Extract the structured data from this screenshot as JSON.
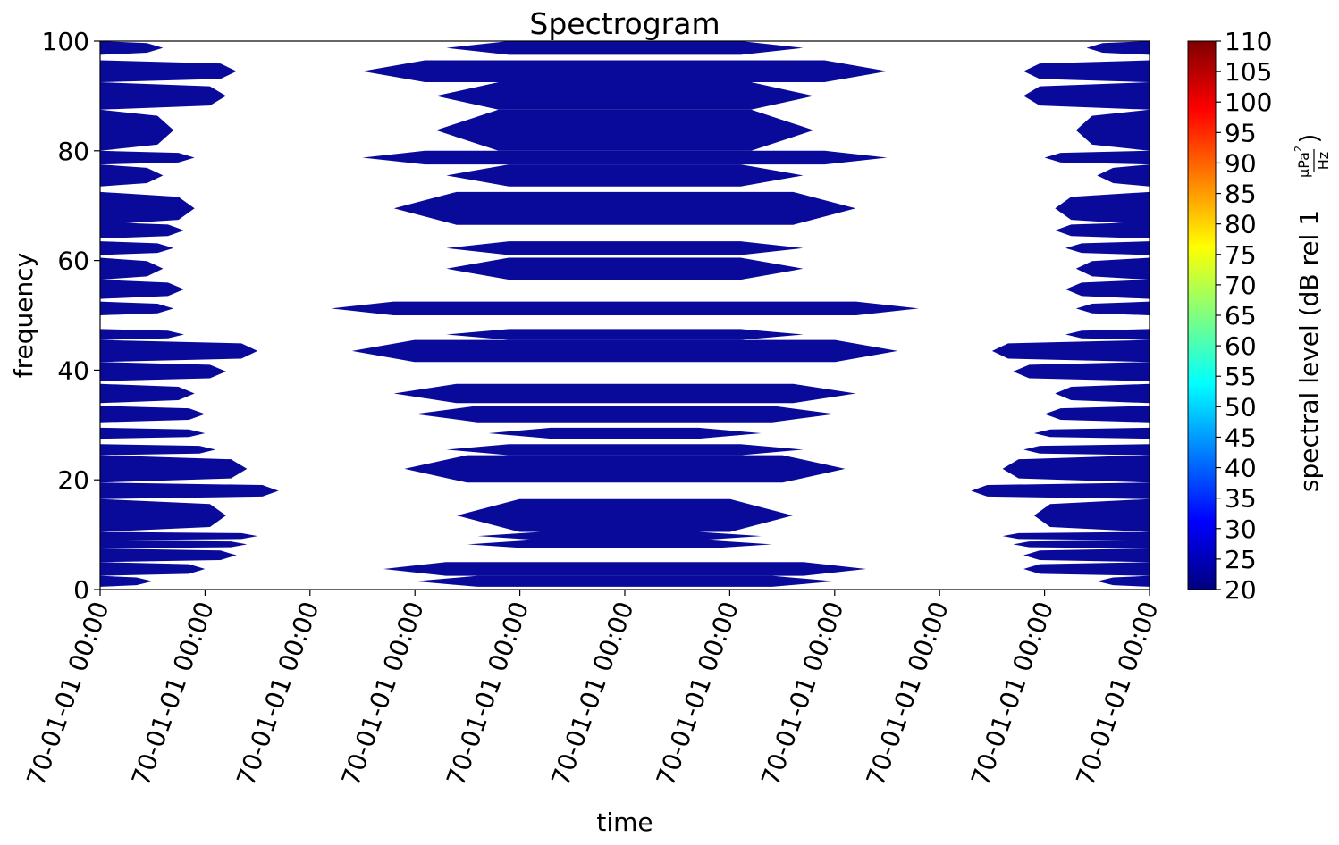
{
  "chart_data": {
    "type": "heatmap",
    "title": "Spectrogram",
    "xlabel": "time",
    "ylabel": "frequency",
    "ylim": [
      0,
      100
    ],
    "y_ticks": [
      0,
      20,
      40,
      60,
      80,
      100
    ],
    "x_tick_labels": [
      "70-01-01 00:00",
      "70-01-01 00:00",
      "70-01-01 00:00",
      "70-01-01 00:00",
      "70-01-01 00:00",
      "70-01-01 00:00",
      "70-01-01 00:00",
      "70-01-01 00:00",
      "70-01-01 00:00",
      "70-01-01 00:00",
      "70-01-01 00:00"
    ],
    "colorbar": {
      "label": "spectral level (dB rel 1",
      "unit_numerator": "μPa",
      "unit_numerator_exp": "2",
      "unit_denominator": "Hz",
      "label_close": ")",
      "range": [
        20,
        110
      ],
      "ticks": [
        20,
        25,
        30,
        35,
        40,
        45,
        50,
        55,
        60,
        65,
        70,
        75,
        80,
        85,
        90,
        95,
        100,
        105,
        110
      ],
      "colormap": "jet",
      "colors": [
        "#00007f",
        "#0000ff",
        "#007fff",
        "#00ffff",
        "#7fff7f",
        "#ffff00",
        "#ff7f00",
        "#ff0000",
        "#7f0000"
      ]
    },
    "time_domain": [
      0,
      1
    ],
    "clusters": [
      {
        "name": "left",
        "anchor": "left",
        "color": "#0a0a9a"
      },
      {
        "name": "center",
        "anchor": "center",
        "color": "#0a0a9a"
      },
      {
        "name": "right",
        "anchor": "right",
        "color": "#0a0a9a"
      }
    ],
    "bands": [
      {
        "f0": 0.5,
        "f1": 2.5,
        "left": 0.05,
        "center_l": 0.3,
        "center_r": 0.7,
        "right": 0.05
      },
      {
        "f0": 2.5,
        "f1": 5.0,
        "left": 0.1,
        "center_l": 0.27,
        "center_r": 0.73,
        "right": 0.12
      },
      {
        "f0": 5.0,
        "f1": 7.5,
        "left": 0.13,
        "center_l": 0.0,
        "center_r": 0.0,
        "right": 0.12
      },
      {
        "f0": 7.5,
        "f1": 9.0,
        "left": 0.14,
        "center_l": 0.35,
        "center_r": 0.64,
        "right": 0.13
      },
      {
        "f0": 9.0,
        "f1": 10.5,
        "left": 0.15,
        "center_l": 0.36,
        "center_r": 0.63,
        "right": 0.14
      },
      {
        "f0": 10.5,
        "f1": 16.5,
        "left": 0.12,
        "center_l": 0.34,
        "center_r": 0.66,
        "right": 0.11
      },
      {
        "f0": 16.5,
        "f1": 19.5,
        "left": 0.17,
        "center_l": 0.0,
        "center_r": 0.0,
        "right": 0.17
      },
      {
        "f0": 19.5,
        "f1": 24.5,
        "left": 0.14,
        "center_l": 0.29,
        "center_r": 0.71,
        "right": 0.14
      },
      {
        "f0": 24.5,
        "f1": 26.5,
        "left": 0.11,
        "center_l": 0.33,
        "center_r": 0.67,
        "right": 0.12
      },
      {
        "f0": 27.5,
        "f1": 29.5,
        "left": 0.1,
        "center_l": 0.37,
        "center_r": 0.63,
        "right": 0.11
      },
      {
        "f0": 30.5,
        "f1": 33.5,
        "left": 0.1,
        "center_l": 0.3,
        "center_r": 0.7,
        "right": 0.1
      },
      {
        "f0": 34.0,
        "f1": 37.5,
        "left": 0.09,
        "center_l": 0.28,
        "center_r": 0.72,
        "right": 0.09
      },
      {
        "f0": 38.0,
        "f1": 41.5,
        "left": 0.12,
        "center_l": 0.0,
        "center_r": 0.0,
        "right": 0.13
      },
      {
        "f0": 41.5,
        "f1": 45.5,
        "left": 0.15,
        "center_l": 0.24,
        "center_r": 0.76,
        "right": 0.15
      },
      {
        "f0": 45.5,
        "f1": 47.5,
        "left": 0.08,
        "center_l": 0.33,
        "center_r": 0.67,
        "right": 0.08
      },
      {
        "f0": 50.0,
        "f1": 52.5,
        "left": 0.07,
        "center_l": 0.22,
        "center_r": 0.78,
        "right": 0.07
      },
      {
        "f0": 53.0,
        "f1": 56.5,
        "left": 0.08,
        "center_l": 0.0,
        "center_r": 0.0,
        "right": 0.08
      },
      {
        "f0": 56.5,
        "f1": 60.5,
        "left": 0.06,
        "center_l": 0.33,
        "center_r": 0.67,
        "right": 0.07
      },
      {
        "f0": 61.0,
        "f1": 63.5,
        "left": 0.07,
        "center_l": 0.33,
        "center_r": 0.67,
        "right": 0.08
      },
      {
        "f0": 64.0,
        "f1": 67.0,
        "left": 0.08,
        "center_l": 0.0,
        "center_r": 0.0,
        "right": 0.09
      },
      {
        "f0": 66.5,
        "f1": 72.5,
        "left": 0.09,
        "center_l": 0.28,
        "center_r": 0.72,
        "right": 0.09
      },
      {
        "f0": 73.5,
        "f1": 77.5,
        "left": 0.06,
        "center_l": 0.33,
        "center_r": 0.67,
        "right": 0.05
      },
      {
        "f0": 77.5,
        "f1": 80.0,
        "left": 0.09,
        "center_l": 0.25,
        "center_r": 0.75,
        "right": 0.1
      },
      {
        "f0": 80.0,
        "f1": 87.5,
        "left": 0.07,
        "center_l": 0.32,
        "center_r": 0.68,
        "right": 0.07
      },
      {
        "f0": 87.5,
        "f1": 92.5,
        "left": 0.12,
        "center_l": 0.32,
        "center_r": 0.68,
        "right": 0.12
      },
      {
        "f0": 92.5,
        "f1": 96.5,
        "left": 0.13,
        "center_l": 0.25,
        "center_r": 0.75,
        "right": 0.12
      },
      {
        "f0": 97.5,
        "f1": 100,
        "left": 0.06,
        "center_l": 0.33,
        "center_r": 0.67,
        "right": 0.06
      }
    ]
  }
}
